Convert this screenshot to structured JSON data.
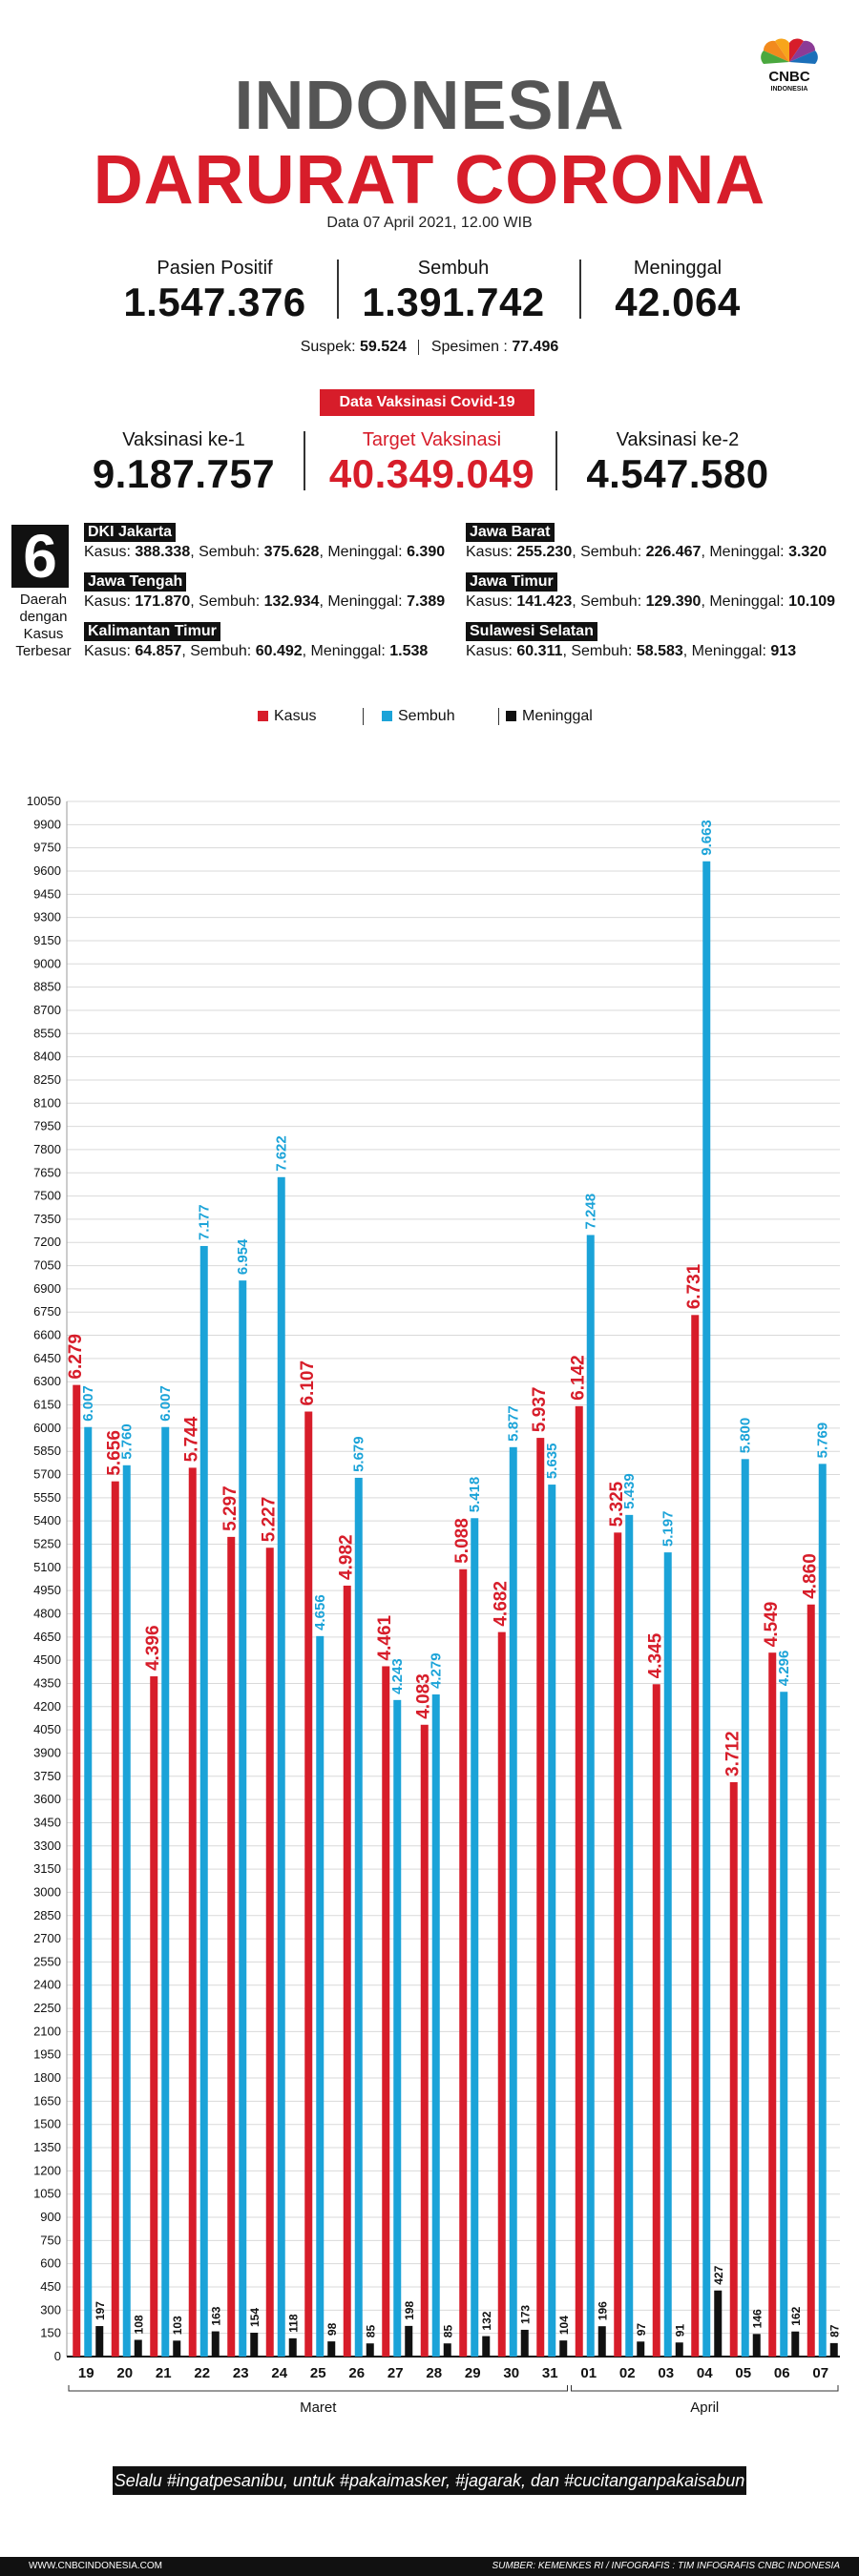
{
  "header": {
    "title_line1": "INDONESIA",
    "title_line2": "DARURAT CORONA",
    "date": "Data 07 April 2021, 12.00 WIB",
    "logo_text": "CNBC",
    "logo_sub": "INDONESIA"
  },
  "stats": [
    {
      "label": "Pasien Positif",
      "value": "1.547.376"
    },
    {
      "label": "Sembuh",
      "value": "1.391.742"
    },
    {
      "label": "Meninggal",
      "value": "42.064"
    }
  ],
  "suspek": {
    "label": "Suspek:",
    "value": "59.524",
    "spec_label": "Spesimen :",
    "spec_value": "77.496"
  },
  "vaccine": {
    "badge": "Data Vaksinasi Covid-19",
    "items": [
      {
        "label": "Vaksinasi ke-1",
        "value": "9.187.757"
      },
      {
        "label": "Target Vaksinasi",
        "value": "40.349.049"
      },
      {
        "label": "Vaksinasi ke-2",
        "value": "4.547.580"
      }
    ]
  },
  "regions": {
    "count": "6",
    "caption": "Daerah dengan Kasus Terbesar",
    "items": [
      {
        "name": "DKI Jakarta",
        "kasus": "388.338",
        "sembuh": "375.628",
        "meninggal": "6.390"
      },
      {
        "name": "Jawa Barat",
        "kasus": "255.230",
        "sembuh": "226.467",
        "meninggal": "3.320"
      },
      {
        "name": "Jawa Tengah",
        "kasus": "171.870",
        "sembuh": "132.934",
        "meninggal": "7.389"
      },
      {
        "name": "Jawa Timur",
        "kasus": "141.423",
        "sembuh": "129.390",
        "meninggal": "10.109"
      },
      {
        "name": "Kalimantan Timur",
        "kasus": "64.857",
        "sembuh": "60.492",
        "meninggal": "1.538"
      },
      {
        "name": "Sulawesi Selatan",
        "kasus": "60.311",
        "sembuh": "58.583",
        "meninggal": "913"
      }
    ],
    "kasus_label": "Kasus:",
    "sembuh_label": "Sembuh:",
    "meninggal_label": "Meninggal:"
  },
  "legend": [
    "Kasus",
    "Sembuh",
    "Meninggal"
  ],
  "colors": {
    "kasus": "#d71d2a",
    "sembuh": "#1ba3d8",
    "meninggal": "#111111"
  },
  "chart_data": {
    "type": "bar",
    "categories": [
      "19",
      "20",
      "21",
      "22",
      "23",
      "24",
      "25",
      "26",
      "27",
      "28",
      "29",
      "30",
      "31",
      "01",
      "02",
      "03",
      "04",
      "05",
      "06",
      "07"
    ],
    "month_groups": [
      {
        "label": "Maret",
        "from": 0,
        "to": 12
      },
      {
        "label": "April",
        "from": 13,
        "to": 19
      }
    ],
    "series": [
      {
        "name": "Kasus",
        "values": [
          6279,
          5656,
          4396,
          5744,
          5297,
          5227,
          6107,
          4982,
          4461,
          4083,
          5088,
          4682,
          5937,
          6142,
          5325,
          4345,
          6731,
          3712,
          4549,
          4860
        ],
        "labels": [
          "6.279",
          "5.656",
          "4.396",
          "5.744",
          "5.297",
          "5.227",
          "6.107",
          "4.982",
          "4.461",
          "4.083",
          "5.088",
          "4.682",
          "5.937",
          "6.142",
          "5.325",
          "4.345",
          "6.731",
          "3.712",
          "4.549",
          "4.860"
        ]
      },
      {
        "name": "Sembuh",
        "values": [
          6007,
          5760,
          6007,
          7177,
          6954,
          7622,
          4656,
          5679,
          4243,
          4279,
          5418,
          5877,
          5635,
          7248,
          5439,
          5197,
          9663,
          5800,
          4296,
          5769
        ],
        "labels": [
          "6.007",
          "5.760",
          "6.007",
          "7.177",
          "6.954",
          "7.622",
          "4.656",
          "5.679",
          "4.243",
          "4.279",
          "5.418",
          "5.877",
          "5.635",
          "7.248",
          "5.439",
          "5.197",
          "9.663",
          "5.800",
          "4.296",
          "5.769"
        ]
      },
      {
        "name": "Meninggal",
        "values": [
          197,
          108,
          103,
          163,
          154,
          118,
          98,
          85,
          198,
          85,
          132,
          173,
          104,
          196,
          97,
          91,
          427,
          146,
          162,
          87
        ],
        "labels": [
          "197",
          "108",
          "103",
          "163",
          "154",
          "118",
          "98",
          "85",
          "198",
          "85",
          "132",
          "173",
          "104",
          "196",
          "97",
          "91",
          "427",
          "146",
          "162",
          "87"
        ]
      }
    ],
    "ylim": [
      0,
      10050
    ],
    "ytick_step": 150,
    "grid": true,
    "legend_position": "top-center"
  },
  "footer": {
    "slogan": "Selalu #ingatpesanibu, untuk #pakaimasker, #jagarak, dan #cucitanganpakaisabun",
    "site": "WWW.CNBCINDONESIA.COM",
    "source": "SUMBER: KEMENKES RI / INFOGRAFIS : TIM INFOGRAFIS CNBC INDONESIA"
  }
}
